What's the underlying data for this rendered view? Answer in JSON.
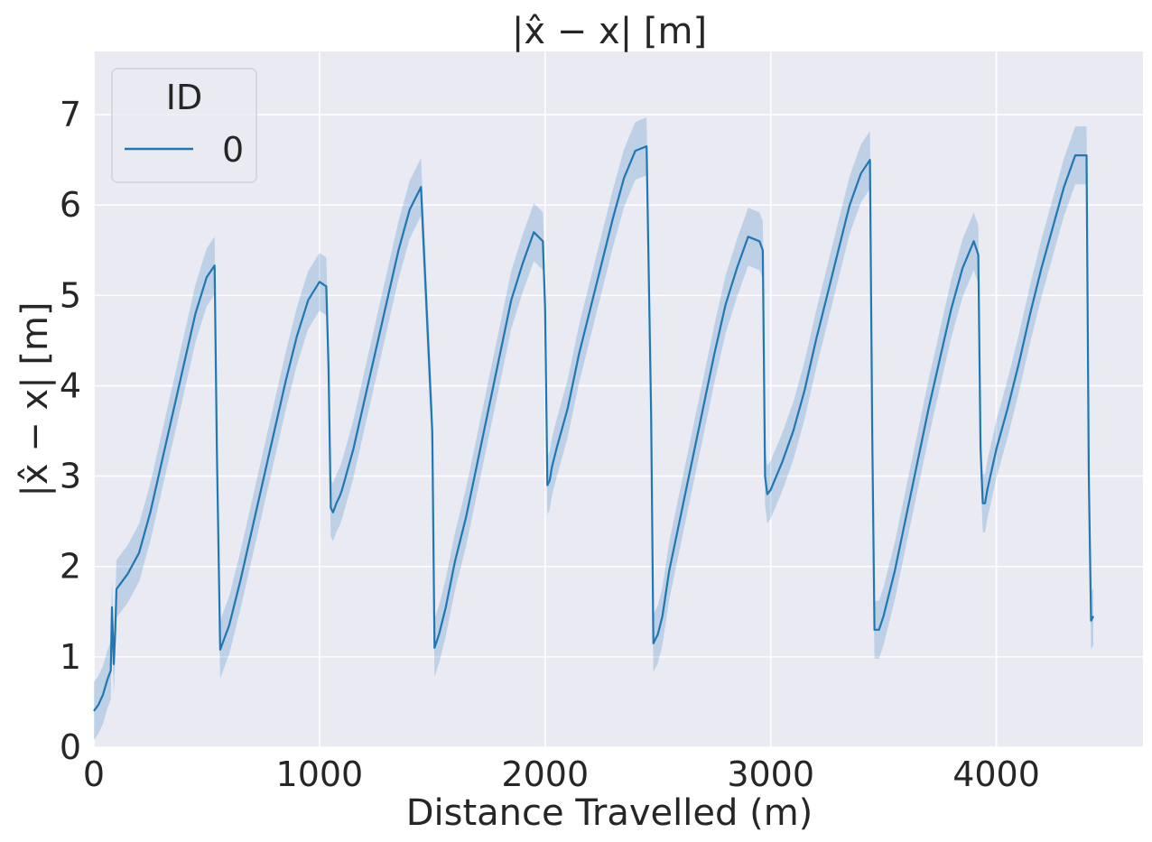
{
  "chart_data": {
    "type": "line",
    "title": "|x̂ − x| [m]",
    "xlabel": "Distance Travelled (m)",
    "ylabel": "|x̂ − x| [m]",
    "xlim": [
      0,
      4650
    ],
    "ylim": [
      0,
      7.7
    ],
    "xticks": [
      0,
      1000,
      2000,
      3000,
      4000
    ],
    "yticks": [
      0,
      1,
      2,
      3,
      4,
      5,
      6,
      7
    ],
    "grid": true,
    "legend": {
      "title": "ID",
      "placement": "top-left",
      "entries": [
        "0"
      ]
    },
    "colors": {
      "line": "#1f77b4",
      "band": "#1f77b4",
      "background": "#eaeaf2",
      "grid": "#ffffff",
      "text": "#262626"
    },
    "series": [
      {
        "name": "0",
        "x": [
          0,
          20,
          40,
          60,
          75,
          80,
          88,
          95,
          100,
          150,
          200,
          250,
          300,
          350,
          400,
          450,
          500,
          535,
          545,
          560,
          600,
          650,
          700,
          750,
          800,
          850,
          900,
          950,
          1000,
          1030,
          1040,
          1050,
          1060,
          1075,
          1090,
          1100,
          1150,
          1200,
          1250,
          1300,
          1350,
          1400,
          1450,
          1500,
          1510,
          1530,
          1560,
          1600,
          1650,
          1700,
          1750,
          1800,
          1850,
          1900,
          1950,
          1990,
          2000,
          2010,
          2020,
          2030,
          2050,
          2100,
          2150,
          2200,
          2250,
          2300,
          2350,
          2400,
          2450,
          2470,
          2480,
          2500,
          2520,
          2550,
          2600,
          2650,
          2700,
          2750,
          2800,
          2850,
          2900,
          2950,
          2965,
          2975,
          2985,
          3000,
          3050,
          3100,
          3150,
          3200,
          3250,
          3300,
          3350,
          3400,
          3440,
          3450,
          3460,
          3480,
          3500,
          3550,
          3600,
          3650,
          3700,
          3750,
          3800,
          3850,
          3900,
          3920,
          3930,
          3940,
          3950,
          3960,
          4000,
          4050,
          4100,
          4150,
          4200,
          4250,
          4300,
          4350,
          4400,
          4410,
          4420,
          4430
        ],
        "y": [
          0.4,
          0.47,
          0.58,
          0.75,
          0.85,
          1.55,
          0.92,
          1.3,
          1.75,
          1.92,
          2.15,
          2.6,
          3.15,
          3.7,
          4.25,
          4.8,
          5.2,
          5.33,
          3.3,
          1.08,
          1.35,
          1.85,
          2.4,
          2.95,
          3.5,
          4.05,
          4.55,
          4.95,
          5.15,
          5.1,
          4.2,
          2.65,
          2.6,
          2.7,
          2.78,
          2.85,
          3.3,
          3.85,
          4.4,
          4.95,
          5.5,
          5.95,
          6.2,
          3.5,
          1.1,
          1.25,
          1.55,
          2.05,
          2.55,
          3.15,
          3.75,
          4.35,
          4.95,
          5.35,
          5.7,
          5.6,
          4.85,
          2.9,
          2.95,
          3.1,
          3.3,
          3.75,
          4.35,
          4.85,
          5.35,
          5.85,
          6.3,
          6.6,
          6.65,
          3.7,
          1.15,
          1.25,
          1.45,
          1.95,
          2.55,
          3.15,
          3.75,
          4.35,
          4.9,
          5.3,
          5.65,
          5.6,
          5.5,
          3.0,
          2.8,
          2.85,
          3.15,
          3.5,
          3.95,
          4.5,
          5.0,
          5.5,
          6.0,
          6.35,
          6.5,
          3.5,
          1.3,
          1.3,
          1.45,
          1.95,
          2.55,
          3.15,
          3.75,
          4.3,
          4.85,
          5.3,
          5.6,
          5.45,
          3.3,
          2.7,
          2.7,
          2.85,
          3.3,
          3.75,
          4.25,
          4.8,
          5.3,
          5.75,
          6.2,
          6.55,
          6.55,
          3.0,
          1.4,
          1.45
        ],
        "band": 0.32
      }
    ]
  }
}
